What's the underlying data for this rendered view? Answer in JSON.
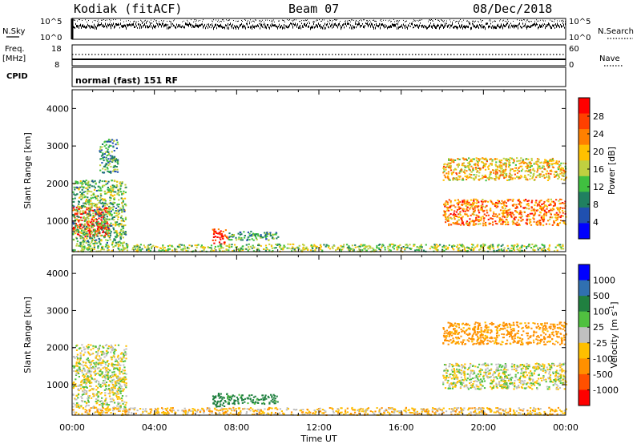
{
  "header": {
    "title": "Kodiak (fitACF)",
    "beam": "Beam 07",
    "date": "08/Dec/2018"
  },
  "panels": {
    "nsky": {
      "left_label": "N.Sky",
      "left_top": "10^5",
      "left_bottom": "10^0",
      "right_top": "10^5",
      "right_bottom": "10^0",
      "right_label": "N.Search"
    },
    "freq": {
      "left_label_1": "Freq.",
      "left_label_2": "[MHz]",
      "left_top": "18",
      "left_bottom": "8",
      "right_top": "60",
      "right_bottom": "0",
      "right_label": "Nave"
    },
    "cpid": {
      "label": "CPID",
      "text": "normal (fast) 151 RF"
    }
  },
  "power_panel": {
    "ylabel": "Slant Range [km]",
    "colorbar_label": "Power [dB]",
    "colorbar_ticks": [
      "28",
      "24",
      "20",
      "16",
      "12",
      "8",
      "4"
    ],
    "colorbar_colors": [
      "#ff0000",
      "#ff4000",
      "#ff8000",
      "#ffc000",
      "#c0d040",
      "#40c040",
      "#208060",
      "#2050b0",
      "#0000ff"
    ]
  },
  "velocity_panel": {
    "ylabel": "Slant Range [km]",
    "colorbar_label": "Velocity [m s",
    "colorbar_label_sup": "-1",
    "colorbar_label_end": "]",
    "colorbar_ticks": [
      "1000",
      "500",
      "100",
      "25",
      "-25",
      "-100",
      "-500",
      "-1000"
    ],
    "colorbar_colors": [
      "#0000ff",
      "#3070b0",
      "#208040",
      "#50c040",
      "#c0c0c0",
      "#ffc000",
      "#ff9000",
      "#ff5000",
      "#ff0000"
    ]
  },
  "time_axis": {
    "xlabel": "Time UT",
    "tick_labels": [
      "00:00",
      "04:00",
      "08:00",
      "12:00",
      "16:00",
      "20:00",
      "00:00"
    ]
  },
  "chart_data": [
    {
      "type": "heatmap",
      "title": "Power",
      "x_unit": "hours UT",
      "xlim": [
        0,
        24
      ],
      "y_unit": "km",
      "ylim": [
        180,
        4500
      ],
      "yticks": [
        1000,
        2000,
        3000,
        4000
      ],
      "ylabel": "Slant Range [km]",
      "colorbar": {
        "label": "Power [dB]",
        "range": [
          0,
          30
        ],
        "ticks": [
          4,
          8,
          12,
          16,
          20,
          24,
          28
        ]
      },
      "regions": [
        {
          "x": [
            0.0,
            1.8
          ],
          "y": [
            600,
            1400
          ],
          "value": 28
        },
        {
          "x": [
            0.0,
            2.6
          ],
          "y": [
            400,
            2100
          ],
          "value": 12
        },
        {
          "x": [
            1.3,
            2.2
          ],
          "y": [
            2300,
            3200
          ],
          "value": 10
        },
        {
          "x": [
            6.8,
            7.6
          ],
          "y": [
            400,
            800
          ],
          "value": 26
        },
        {
          "x": [
            7.5,
            10.0
          ],
          "y": [
            500,
            750
          ],
          "value": 10
        },
        {
          "x": [
            0.0,
            24.0
          ],
          "y": [
            200,
            400
          ],
          "value": 14
        },
        {
          "x": [
            18.0,
            24.0
          ],
          "y": [
            900,
            1600
          ],
          "value": 22
        },
        {
          "x": [
            18.0,
            24.0
          ],
          "y": [
            2100,
            2700
          ],
          "value": 18
        }
      ]
    },
    {
      "type": "heatmap",
      "title": "Velocity",
      "x_unit": "hours UT",
      "xlim": [
        0,
        24
      ],
      "y_unit": "km",
      "ylim": [
        180,
        4500
      ],
      "yticks": [
        1000,
        2000,
        3000,
        4000
      ],
      "ylabel": "Slant Range [km]",
      "colorbar": {
        "label": "Velocity [m s-1]",
        "range": [
          -1000,
          1000
        ],
        "ticks": [
          1000,
          500,
          100,
          25,
          -25,
          -100,
          -500,
          -1000
        ]
      },
      "regions": [
        {
          "x": [
            0.0,
            2.6
          ],
          "y": [
            400,
            2100
          ],
          "value": 0
        },
        {
          "x": [
            6.8,
            7.6
          ],
          "y": [
            400,
            800
          ],
          "value": 200
        },
        {
          "x": [
            7.5,
            10.0
          ],
          "y": [
            500,
            750
          ],
          "value": 150
        },
        {
          "x": [
            0.0,
            24.0
          ],
          "y": [
            200,
            400
          ],
          "value": -60
        },
        {
          "x": [
            18.0,
            24.0
          ],
          "y": [
            900,
            1600
          ],
          "value": 0
        },
        {
          "x": [
            18.0,
            24.0
          ],
          "y": [
            2100,
            2700
          ],
          "value": -150
        }
      ]
    },
    {
      "type": "line",
      "title": "Frequency",
      "series": [
        {
          "values": [
            10.8,
            10.8
          ]
        },
        {
          "values": [
            12.4,
            12.4
          ]
        }
      ]
    }
  ]
}
